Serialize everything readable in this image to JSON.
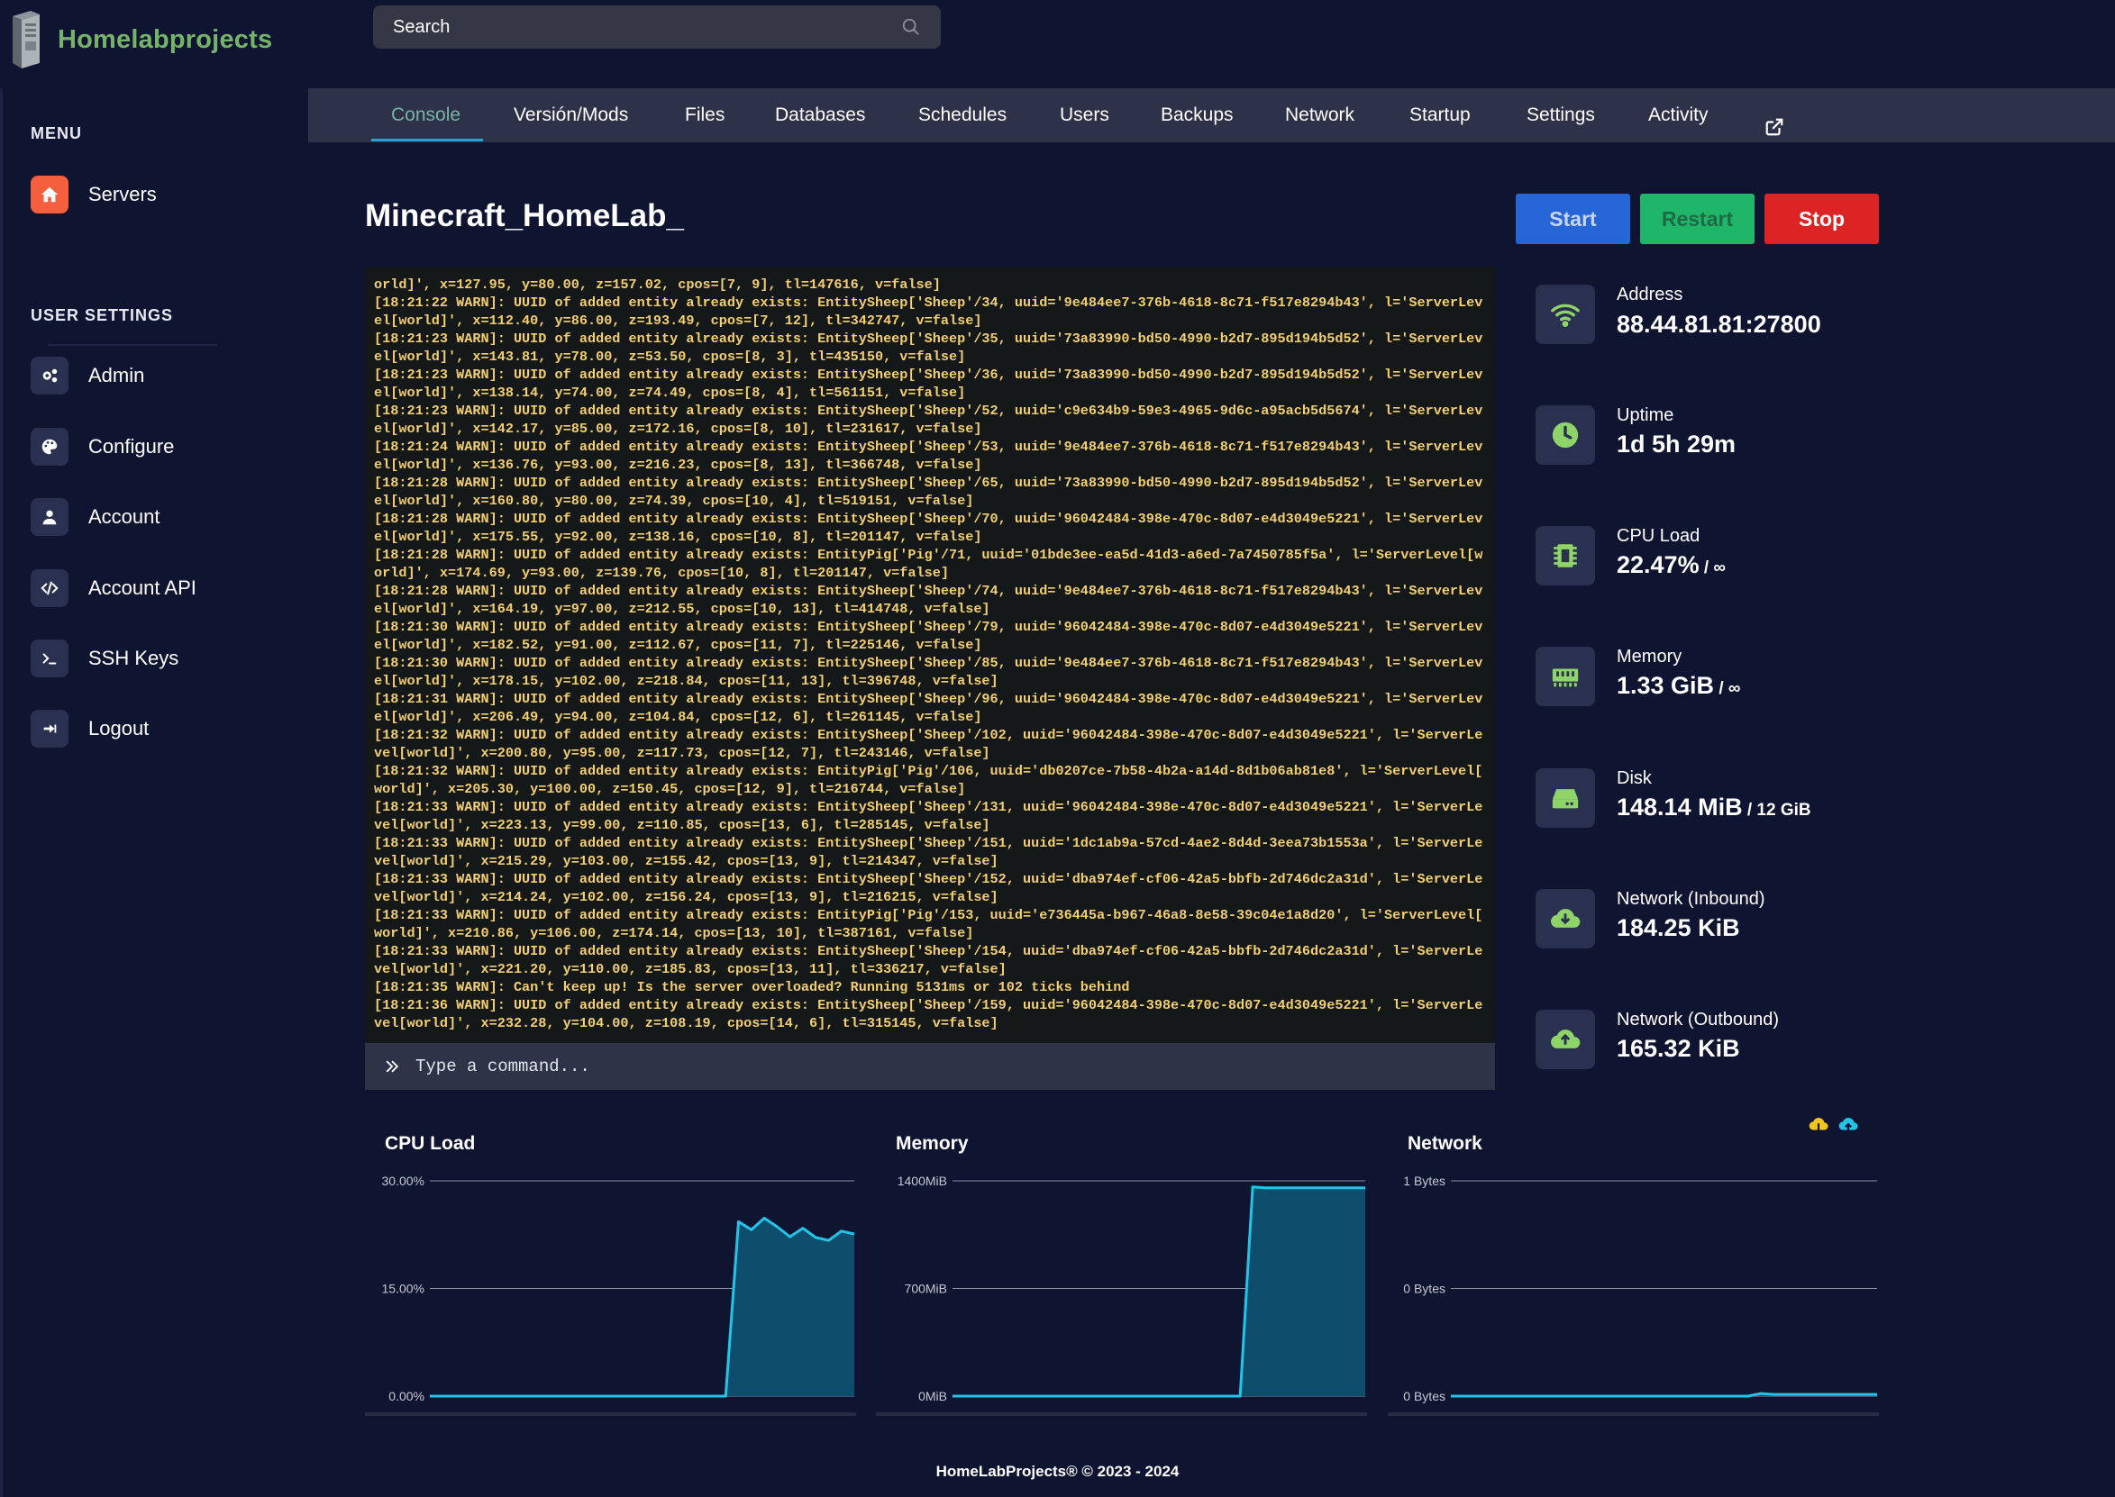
{
  "brand": {
    "name": "Homelabprojects"
  },
  "search": {
    "placeholder": "Search"
  },
  "sidebar": {
    "menu_heading": "MENU",
    "menu_items": [
      {
        "label": "Servers",
        "icon": "home-icon",
        "active": true
      }
    ],
    "settings_heading": "USER SETTINGS",
    "settings_items": [
      {
        "label": "Admin",
        "icon": "gears-icon"
      },
      {
        "label": "Configure",
        "icon": "palette-icon"
      },
      {
        "label": "Account",
        "icon": "user-icon"
      },
      {
        "label": "Account API",
        "icon": "code-icon"
      },
      {
        "label": "SSH Keys",
        "icon": "terminal-icon"
      },
      {
        "label": "Logout",
        "icon": "logout-icon"
      }
    ]
  },
  "tabs": [
    {
      "label": "Console",
      "active": true
    },
    {
      "label": "Versión/Mods"
    },
    {
      "label": "Files"
    },
    {
      "label": "Databases"
    },
    {
      "label": "Schedules"
    },
    {
      "label": "Users"
    },
    {
      "label": "Backups"
    },
    {
      "label": "Network"
    },
    {
      "label": "Startup"
    },
    {
      "label": "Settings"
    },
    {
      "label": "Activity"
    },
    {
      "label": "",
      "icon": "external-link-icon"
    }
  ],
  "server": {
    "name": "Minecraft_HomeLab_",
    "buttons": {
      "start": "Start",
      "restart": "Restart",
      "stop": "Stop"
    }
  },
  "console": {
    "lines": [
      "orld]', x=127.95, y=80.00, z=157.02, cpos=[7, 9], tl=147616, v=false]",
      "[18:21:22 WARN]: UUID of added entity already exists: EntitySheep['Sheep'/34, uuid='9e484ee7-376b-4618-8c71-f517e8294b43', l='ServerLev",
      "el[world]', x=112.40, y=86.00, z=193.49, cpos=[7, 12], tl=342747, v=false]",
      "[18:21:23 WARN]: UUID of added entity already exists: EntitySheep['Sheep'/35, uuid='73a83990-bd50-4990-b2d7-895d194b5d52', l='ServerLev",
      "el[world]', x=143.81, y=78.00, z=53.50, cpos=[8, 3], tl=435150, v=false]",
      "[18:21:23 WARN]: UUID of added entity already exists: EntitySheep['Sheep'/36, uuid='73a83990-bd50-4990-b2d7-895d194b5d52', l='ServerLev",
      "el[world]', x=138.14, y=74.00, z=74.49, cpos=[8, 4], tl=561151, v=false]",
      "[18:21:23 WARN]: UUID of added entity already exists: EntitySheep['Sheep'/52, uuid='c9e634b9-59e3-4965-9d6c-a95acb5d5674', l='ServerLev",
      "el[world]', x=142.17, y=85.00, z=172.16, cpos=[8, 10], tl=231617, v=false]",
      "[18:21:24 WARN]: UUID of added entity already exists: EntitySheep['Sheep'/53, uuid='9e484ee7-376b-4618-8c71-f517e8294b43', l='ServerLev",
      "el[world]', x=136.76, y=93.00, z=216.23, cpos=[8, 13], tl=366748, v=false]",
      "[18:21:28 WARN]: UUID of added entity already exists: EntitySheep['Sheep'/65, uuid='73a83990-bd50-4990-b2d7-895d194b5d52', l='ServerLev",
      "el[world]', x=160.80, y=80.00, z=74.39, cpos=[10, 4], tl=519151, v=false]",
      "[18:21:28 WARN]: UUID of added entity already exists: EntitySheep['Sheep'/70, uuid='96042484-398e-470c-8d07-e4d3049e5221', l='ServerLev",
      "el[world]', x=175.55, y=92.00, z=138.16, cpos=[10, 8], tl=201147, v=false]",
      "[18:21:28 WARN]: UUID of added entity already exists: EntityPig['Pig'/71, uuid='01bde3ee-ea5d-41d3-a6ed-7a7450785f5a', l='ServerLevel[w",
      "orld]', x=174.69, y=93.00, z=139.76, cpos=[10, 8], tl=201147, v=false]",
      "[18:21:28 WARN]: UUID of added entity already exists: EntitySheep['Sheep'/74, uuid='9e484ee7-376b-4618-8c71-f517e8294b43', l='ServerLev",
      "el[world]', x=164.19, y=97.00, z=212.55, cpos=[10, 13], tl=414748, v=false]",
      "[18:21:30 WARN]: UUID of added entity already exists: EntitySheep['Sheep'/79, uuid='96042484-398e-470c-8d07-e4d3049e5221', l='ServerLev",
      "el[world]', x=182.52, y=91.00, z=112.67, cpos=[11, 7], tl=225146, v=false]",
      "[18:21:30 WARN]: UUID of added entity already exists: EntitySheep['Sheep'/85, uuid='9e484ee7-376b-4618-8c71-f517e8294b43', l='ServerLev",
      "el[world]', x=178.15, y=102.00, z=218.84, cpos=[11, 13], tl=396748, v=false]",
      "[18:21:31 WARN]: UUID of added entity already exists: EntitySheep['Sheep'/96, uuid='96042484-398e-470c-8d07-e4d3049e5221', l='ServerLev",
      "el[world]', x=206.49, y=94.00, z=104.84, cpos=[12, 6], tl=261145, v=false]",
      "[18:21:32 WARN]: UUID of added entity already exists: EntitySheep['Sheep'/102, uuid='96042484-398e-470c-8d07-e4d3049e5221', l='ServerLe",
      "vel[world]', x=200.80, y=95.00, z=117.73, cpos=[12, 7], tl=243146, v=false]",
      "[18:21:32 WARN]: UUID of added entity already exists: EntityPig['Pig'/106, uuid='db0207ce-7b58-4b2a-a14d-8d1b06ab81e8', l='ServerLevel[",
      "world]', x=205.30, y=100.00, z=150.45, cpos=[12, 9], tl=216744, v=false]",
      "[18:21:33 WARN]: UUID of added entity already exists: EntitySheep['Sheep'/131, uuid='96042484-398e-470c-8d07-e4d3049e5221', l='ServerLe",
      "vel[world]', x=223.13, y=99.00, z=110.85, cpos=[13, 6], tl=285145, v=false]",
      "[18:21:33 WARN]: UUID of added entity already exists: EntitySheep['Sheep'/151, uuid='1dc1ab9a-57cd-4ae2-8d4d-3eea73b1553a', l='ServerLe",
      "vel[world]', x=215.29, y=103.00, z=155.42, cpos=[13, 9], tl=214347, v=false]",
      "[18:21:33 WARN]: UUID of added entity already exists: EntitySheep['Sheep'/152, uuid='dba974ef-cf06-42a5-bbfb-2d746dc2a31d', l='ServerLe",
      "vel[world]', x=214.24, y=102.00, z=156.24, cpos=[13, 9], tl=216215, v=false]",
      "[18:21:33 WARN]: UUID of added entity already exists: EntityPig['Pig'/153, uuid='e736445a-b967-46a8-8e58-39c04e1a8d20', l='ServerLevel[",
      "world]', x=210.86, y=106.00, z=174.14, cpos=[13, 10], tl=387161, v=false]",
      "[18:21:33 WARN]: UUID of added entity already exists: EntitySheep['Sheep'/154, uuid='dba974ef-cf06-42a5-bbfb-2d746dc2a31d', l='ServerLe",
      "vel[world]', x=221.20, y=110.00, z=185.83, cpos=[13, 11], tl=336217, v=false]",
      "[18:21:35 WARN]: Can't keep up! Is the server overloaded? Running 5131ms or 102 ticks behind",
      "[18:21:36 WARN]: UUID of added entity already exists: EntitySheep['Sheep'/159, uuid='96042484-398e-470c-8d07-e4d3049e5221', l='ServerLe",
      "vel[world]', x=232.28, y=104.00, z=108.19, cpos=[14, 6], tl=315145, v=false]"
    ],
    "command_placeholder": "Type a command..."
  },
  "stats": [
    {
      "label": "Address",
      "value": "88.44.81.81:27800",
      "suffix": "",
      "icon": "wifi-icon",
      "clipped": true
    },
    {
      "label": "Uptime",
      "value": "1d 5h 29m",
      "suffix": "",
      "icon": "clock-icon"
    },
    {
      "label": "CPU Load",
      "value": "22.47%",
      "suffix": " / ∞",
      "icon": "chip-icon"
    },
    {
      "label": "Memory",
      "value": "1.33 GiB",
      "suffix": " / ∞",
      "icon": "memory-icon"
    },
    {
      "label": "Disk",
      "value": "148.14 MiB",
      "suffix": " / 12 GiB",
      "icon": "hdd-icon"
    },
    {
      "label": "Network (Inbound)",
      "value": "184.25 KiB",
      "suffix": "",
      "icon": "cloud-download-icon"
    },
    {
      "label": "Network (Outbound)",
      "value": "165.32 KiB",
      "suffix": "",
      "icon": "cloud-upload-icon"
    }
  ],
  "colors": {
    "background": "#0f1430",
    "accent_line": "#22c4e8",
    "area_fill": "#0e4d6b",
    "brand_green": "#76b36a",
    "console_text": "#f2cf72",
    "stat_icon": "#8fd468"
  },
  "chart_data": [
    {
      "type": "area",
      "title": "CPU Load",
      "y_ticks": [
        "30.00%",
        "15.00%",
        "0.00%"
      ],
      "ylim": [
        0,
        30
      ],
      "values": [
        0,
        0,
        0,
        0,
        0,
        0,
        0,
        0,
        0,
        0,
        0,
        0,
        0,
        0,
        0,
        0,
        0,
        0,
        0,
        0,
        0,
        0,
        0,
        0,
        24.3,
        23.2,
        24.8,
        23.6,
        22.2,
        23.4,
        22.1,
        21.7,
        23.0,
        22.6
      ],
      "series_color": "#22c4e8"
    },
    {
      "type": "area",
      "title": "Memory",
      "y_ticks": [
        "1400MiB",
        "700MiB",
        "0MiB"
      ],
      "ylim": [
        0,
        1400
      ],
      "values": [
        0,
        0,
        0,
        0,
        0,
        0,
        0,
        0,
        0,
        0,
        0,
        0,
        0,
        0,
        0,
        0,
        0,
        0,
        0,
        0,
        0,
        0,
        0,
        0,
        1360,
        1355,
        1355,
        1355,
        1355,
        1355,
        1355,
        1355,
        1355,
        1355
      ],
      "series_color": "#22c4e8"
    },
    {
      "type": "area",
      "title": "Network",
      "y_ticks": [
        "1 Bytes",
        "0 Bytes",
        "0 Bytes"
      ],
      "ylim": [
        0,
        1
      ],
      "values": [
        0,
        0,
        0,
        0,
        0,
        0,
        0,
        0,
        0,
        0,
        0,
        0,
        0,
        0,
        0,
        0,
        0,
        0,
        0,
        0,
        0,
        0,
        0,
        0,
        0.012,
        0.008,
        0.008,
        0.008,
        0.008,
        0.008,
        0.008,
        0.008,
        0.008,
        0.008
      ],
      "series_color": "#22c4e8",
      "legend_icons": [
        {
          "icon": "cloud-download-icon",
          "color": "#f2c618"
        },
        {
          "icon": "cloud-upload-icon",
          "color": "#22c4e8"
        }
      ]
    }
  ],
  "footer": {
    "text": "HomeLabProjects® © 2023 - 2024"
  }
}
